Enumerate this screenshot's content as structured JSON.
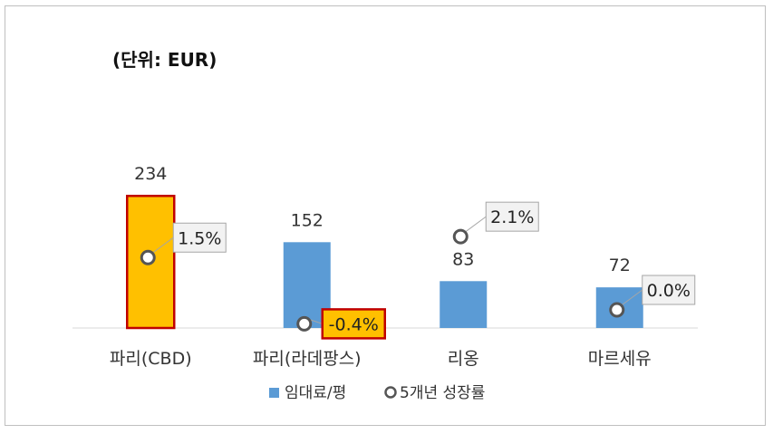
{
  "chart_data": {
    "type": "bar",
    "unit_note": "(단위: EUR)",
    "categories": [
      "파리(CBD)",
      "파리(라데팡스)",
      "리옹",
      "마르세유"
    ],
    "series": [
      {
        "name": "임대료/평",
        "kind": "bar",
        "axis": "primary",
        "values": [
          234,
          152,
          83,
          72
        ],
        "value_labels": [
          "234",
          "152",
          "83",
          "72"
        ],
        "color": "#5b9bd5",
        "highlight_index": 0,
        "highlight_color": "#ffc000",
        "highlight_border": "#c00000"
      },
      {
        "name": "5개년 성장률",
        "kind": "marker",
        "axis": "secondary",
        "values": [
          1.5,
          -0.4,
          2.1,
          0.0
        ],
        "value_labels": [
          "1.5%",
          "-0.4%",
          "2.1%",
          "0.0%"
        ],
        "unit": "%",
        "marker_style": "hollow-circle",
        "marker_color": "#555555",
        "label_fill": "#f2f2f2",
        "highlight_index": 1,
        "highlight_color": "#ffc000",
        "highlight_border": "#c00000"
      }
    ],
    "ylim": [
      0,
      280
    ],
    "y2lim": [
      -1,
      2.7
    ],
    "grid": false,
    "axes_visible": false,
    "legend_position": "bottom"
  }
}
